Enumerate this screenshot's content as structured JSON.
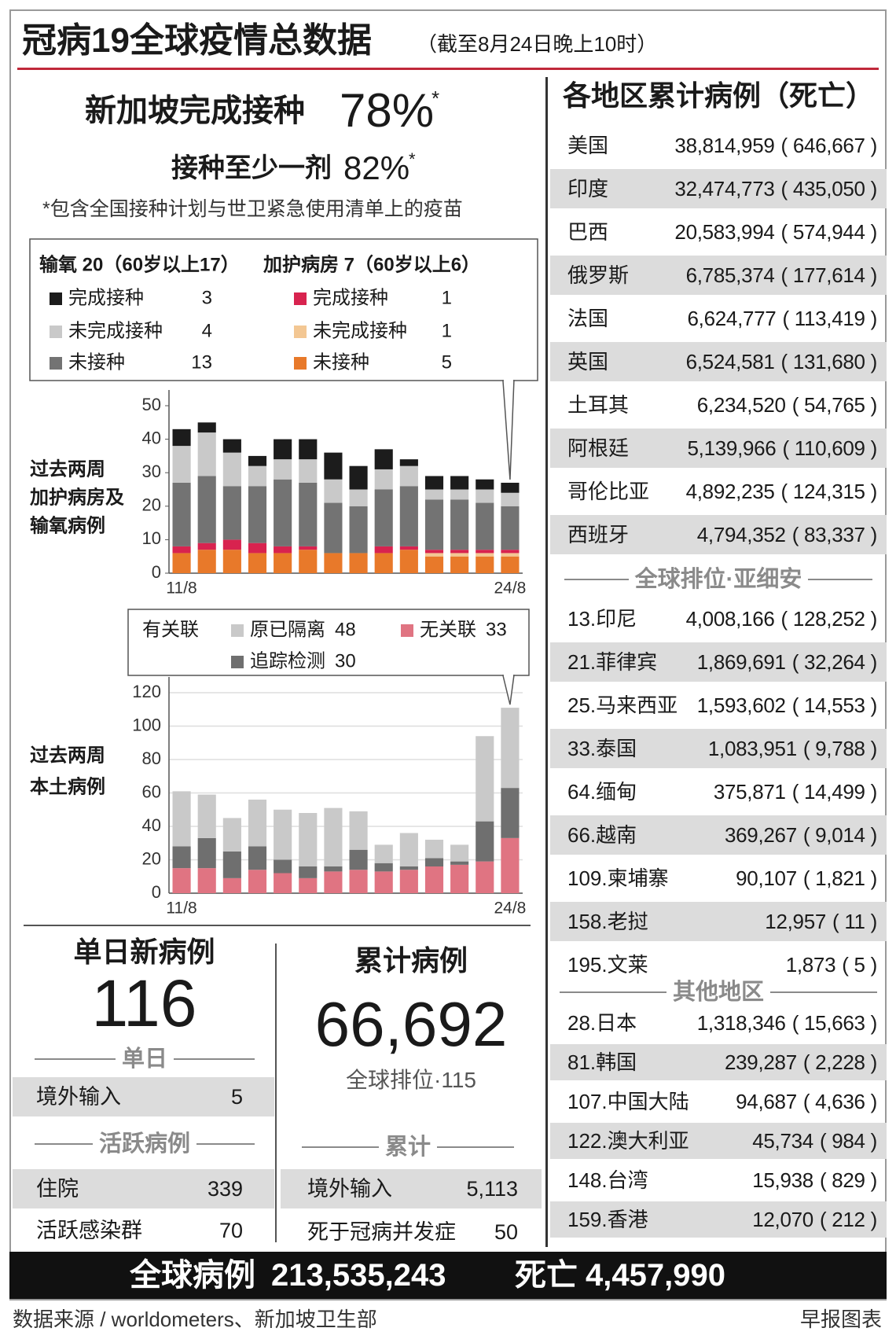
{
  "header": {
    "title": "冠病19全球疫情总数据",
    "subtitle": "（截至8月24日晚上10时）"
  },
  "vaccination": {
    "full_label": "新加坡完成接种",
    "full_value": "78%",
    "full_mark": "*",
    "partial_label": "接种至少一剂",
    "partial_value": "82%",
    "partial_mark": "*",
    "note": "*包含全国接种计划与世卫紧急使用清单上的疫苗"
  },
  "chart_data": [
    {
      "type": "bar",
      "stacked": true,
      "side_label": [
        "过去两周",
        "加护病房及",
        "输氧病例"
      ],
      "legend_titles": [
        "输氧 20（60岁以上17）",
        "加护病房 7（60岁以上6）"
      ],
      "categories": [
        "11/8",
        null,
        null,
        null,
        null,
        null,
        null,
        null,
        null,
        null,
        null,
        null,
        null,
        "24/8"
      ],
      "ylim": [
        0,
        50
      ],
      "yticks": [
        0,
        10,
        20,
        30,
        40,
        50
      ],
      "grid": false,
      "series": [
        {
          "name": "完成接种",
          "legend_value": "3",
          "color": "#1c1c1c",
          "values": [
            5,
            3,
            4,
            3,
            6,
            6,
            8,
            7,
            6,
            2,
            4,
            4,
            3,
            3
          ]
        },
        {
          "name": "未完成接种",
          "legend_value": "4",
          "color": "#c9c9c9",
          "values": [
            11,
            13,
            10,
            6,
            6,
            7,
            7,
            5,
            6,
            6,
            3,
            3,
            4,
            4
          ]
        },
        {
          "name": "未接种",
          "legend_value": "13",
          "color": "#737373",
          "values": [
            19,
            20,
            16,
            17,
            20,
            19,
            15,
            14,
            17,
            18,
            15,
            15,
            14,
            13
          ]
        },
        {
          "name": "完成接种",
          "legend_value": "1",
          "color": "#d8234f",
          "values": [
            2,
            2,
            3,
            3,
            2,
            1,
            0,
            0,
            2,
            1,
            1,
            1,
            1,
            1
          ]
        },
        {
          "name": "未完成接种",
          "legend_value": "1",
          "color": "#f3c793",
          "values": [
            0,
            0,
            0,
            0,
            0,
            0,
            0,
            0,
            0,
            0,
            1,
            1,
            1,
            1
          ]
        },
        {
          "name": "未接种",
          "legend_value": "5",
          "color": "#e8792a",
          "values": [
            6,
            7,
            7,
            6,
            6,
            7,
            6,
            6,
            6,
            7,
            5,
            5,
            5,
            5
          ]
        }
      ]
    },
    {
      "type": "bar",
      "stacked": true,
      "side_label": [
        "过去两周",
        "本土病例"
      ],
      "legend_label": "有关联",
      "categories": [
        "11/8",
        null,
        null,
        null,
        null,
        null,
        null,
        null,
        null,
        null,
        null,
        null,
        null,
        "24/8"
      ],
      "ylim": [
        0,
        120
      ],
      "yticks": [
        0,
        20,
        40,
        60,
        80,
        100,
        120
      ],
      "grid": true,
      "series": [
        {
          "name": "原已隔离",
          "legend_value": "48",
          "color": "#c9c9c9",
          "values": [
            33,
            26,
            20,
            28,
            30,
            32,
            35,
            23,
            11,
            20,
            11,
            10,
            51,
            48
          ]
        },
        {
          "name": "追踪检测",
          "legend_value": "30",
          "color": "#6f6f6f",
          "values": [
            13,
            18,
            16,
            14,
            8,
            7,
            3,
            12,
            5,
            2,
            5,
            2,
            24,
            30
          ]
        },
        {
          "name": "无关联",
          "legend_value": "33",
          "color": "#e07482",
          "values": [
            15,
            15,
            9,
            14,
            12,
            9,
            13,
            14,
            13,
            14,
            16,
            17,
            19,
            33
          ]
        }
      ]
    }
  ],
  "daily": {
    "title": "单日新病例",
    "value": "116",
    "section": "单日",
    "imported_label": "境外输入",
    "imported": "5",
    "active_title": "活跃病例",
    "hospital_label": "住院",
    "hospital": "339",
    "clusters_label": "活跃感染群",
    "clusters": "70"
  },
  "cumulative": {
    "title": "累计病例",
    "value": "66,692",
    "rank": "全球排位·115",
    "section": "累计",
    "imported_label": "境外输入",
    "imported": "5,113",
    "deaths_label": "死于冠病并发症",
    "deaths": "50"
  },
  "regions": {
    "title": "各地区累计病例（死亡）",
    "top": [
      [
        "美国",
        "38,814,959",
        "( 646,667 )"
      ],
      [
        "印度",
        "32,474,773",
        "( 435,050 )"
      ],
      [
        "巴西",
        "20,583,994",
        "( 574,944 )"
      ],
      [
        "俄罗斯",
        "6,785,374",
        "( 177,614 )"
      ],
      [
        "法国",
        "6,624,777",
        "( 113,419 )"
      ],
      [
        "英国",
        "6,524,581",
        "( 131,680 )"
      ],
      [
        "土耳其",
        "6,234,520",
        "( 54,765 )"
      ],
      [
        "阿根廷",
        "5,139,966",
        "( 110,609 )"
      ],
      [
        "哥伦比亚",
        "4,892,235",
        "( 124,315 )"
      ],
      [
        "西班牙",
        "4,794,352",
        "( 83,337 )"
      ]
    ],
    "asean_title": "全球排位·亚细安",
    "asean": [
      [
        "13.印尼",
        "4,008,166",
        "( 128,252 )"
      ],
      [
        "21.菲律宾",
        "1,869,691",
        "( 32,264 )"
      ],
      [
        "25.马来西亚",
        "1,593,602",
        "( 14,553 )"
      ],
      [
        "33.泰国",
        "1,083,951",
        "( 9,788 )"
      ],
      [
        "64.缅甸",
        "375,871",
        "( 14,499 )"
      ],
      [
        "66.越南",
        "369,267",
        "( 9,014 )"
      ],
      [
        "109.柬埔寨",
        "90,107",
        "( 1,821 )"
      ],
      [
        "158.老挝",
        "12,957",
        "( 11 )"
      ],
      [
        "195.文莱",
        "1,873",
        "( 5 )"
      ]
    ],
    "others_title": "其他地区",
    "others": [
      [
        "28.日本",
        "1,318,346",
        "( 15,663 )"
      ],
      [
        "81.韩国",
        "239,287",
        "( 2,228 )"
      ],
      [
        "107.中国大陆",
        "94,687",
        "( 4,636 )"
      ],
      [
        "122.澳大利亚",
        "45,734",
        "( 984 )"
      ],
      [
        "148.台湾",
        "15,938",
        "( 829 )"
      ],
      [
        "159.香港",
        "12,070",
        "( 212 )"
      ]
    ]
  },
  "footer": {
    "cases_label": "全球病例",
    "cases": "213,535,243",
    "deaths_label": "死亡",
    "deaths": "4,457,990",
    "source": "数据来源 / worldometers、新加坡卫生部",
    "credit": "早报图表"
  }
}
